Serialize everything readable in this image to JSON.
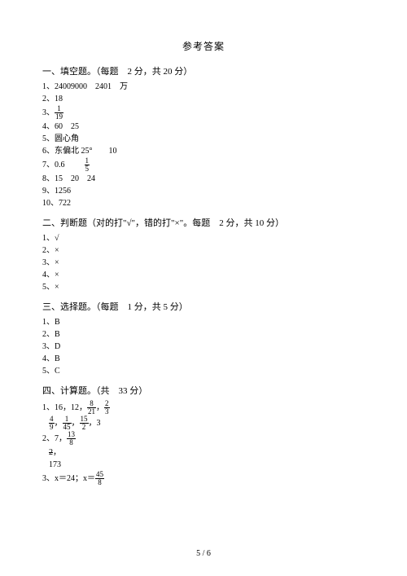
{
  "title": "参考答案",
  "sec1": {
    "heading": "一、填空题。（每题　2 分，共 20 分）",
    "l1": "1、24009000　2401　万",
    "l2": "2、18",
    "l3a": "3、",
    "l3_num": "1",
    "l3_den": "19",
    "l4": "4、60　25",
    "l5": "5、圆心角",
    "l6": "6、东偏北 25°　　10",
    "l7a": "7、0.6　",
    "l7_num": "1",
    "l7_den": "5",
    "l8": "8、15　20　24",
    "l9": "9、1256",
    "l10": "10、722"
  },
  "sec2": {
    "heading": "二、判断题（对的打\"√\"，错的打\"×\"。每题　2 分，共 10 分）",
    "l1": "1、√",
    "l2": "2、×",
    "l3": "3、×",
    "l4": "4、×",
    "l5": "5、×"
  },
  "sec3": {
    "heading": "三、选择题。（每题　1 分，共 5 分）",
    "l1": "1、B",
    "l2": "2、B",
    "l3": "3、D",
    "l4": "4、B",
    "l5": "5、C"
  },
  "sec4": {
    "heading": "四、计算题。（共　33 分）",
    "l1a": "1、16，12，",
    "f1_n": "8",
    "f1_d": "21",
    "comma": "，",
    "f2_n": "2",
    "f2_d": "3",
    "l2_f1n": "4",
    "l2_f1d": "9",
    "l2_f2n": "1",
    "l2_f2d": "45",
    "l2_f3n": "15",
    "l2_f3d": "2",
    "l2_tail": "，3",
    "l3a": "2、7，",
    "l3_fn": "13",
    "l3_fd": "8",
    "l3b_strike": "2",
    "l3b_comma": "，",
    "l3c": "173",
    "l4a": "3、x＝24；x＝",
    "l4_fn": "45",
    "l4_fd": "8"
  },
  "page": "5 / 6"
}
